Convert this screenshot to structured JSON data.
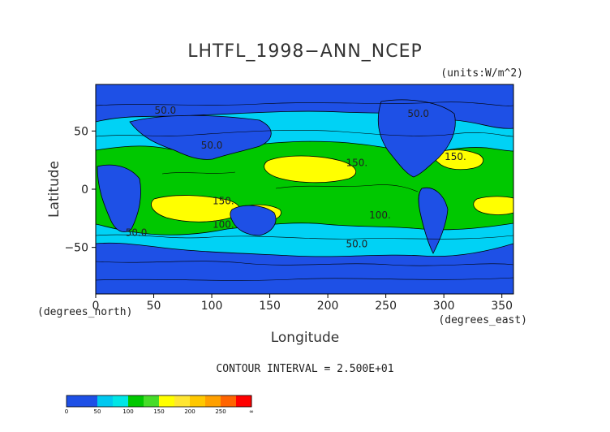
{
  "chart_data": {
    "type": "heatmap",
    "title": "LHTFL_1998−ANN_NCEP",
    "units": "(units:W/m^2)",
    "xlabel": "Longitude",
    "ylabel": "Latitude",
    "x_unit_label": "(degrees_east)",
    "y_unit_label": "(degrees_north)",
    "xlim": [
      0,
      360
    ],
    "ylim": [
      -90,
      90
    ],
    "x_ticks": [
      "0",
      "50",
      "100",
      "150",
      "200",
      "250",
      "300",
      "350"
    ],
    "y_ticks": [
      "50",
      "0",
      "−50"
    ],
    "contour_interval_text": "CONTOUR INTERVAL = 2.500E+01",
    "contour_labels": [
      {
        "text": "50.0",
        "lon": 60,
        "lat": 65
      },
      {
        "text": "50.0",
        "lon": 100,
        "lat": 35
      },
      {
        "text": "150.",
        "lon": 110,
        "lat": -13
      },
      {
        "text": "100.",
        "lon": 110,
        "lat": -33
      },
      {
        "text": "50.0",
        "lon": 35,
        "lat": -40
      },
      {
        "text": "150.",
        "lon": 225,
        "lat": 20
      },
      {
        "text": "100.",
        "lon": 245,
        "lat": -25
      },
      {
        "text": "50.0",
        "lon": 225,
        "lat": -50
      },
      {
        "text": "50.0",
        "lon": 278,
        "lat": 62
      },
      {
        "text": "150.",
        "lon": 310,
        "lat": 25
      }
    ],
    "colorbar": {
      "levels": [
        0,
        25,
        50,
        75,
        100,
        125,
        150,
        175,
        200,
        225,
        250,
        275,
        300
      ],
      "tick_labels": [
        "0",
        "50",
        "100",
        "150",
        "200",
        "250",
        "∞"
      ],
      "colors": [
        "#1e50e6",
        "#1e50e6",
        "#00c8f0",
        "#00e6e6",
        "#00c800",
        "#46dc28",
        "#ffff00",
        "#ffe632",
        "#ffc800",
        "#ffa000",
        "#ff6400",
        "#ff0000"
      ]
    }
  }
}
